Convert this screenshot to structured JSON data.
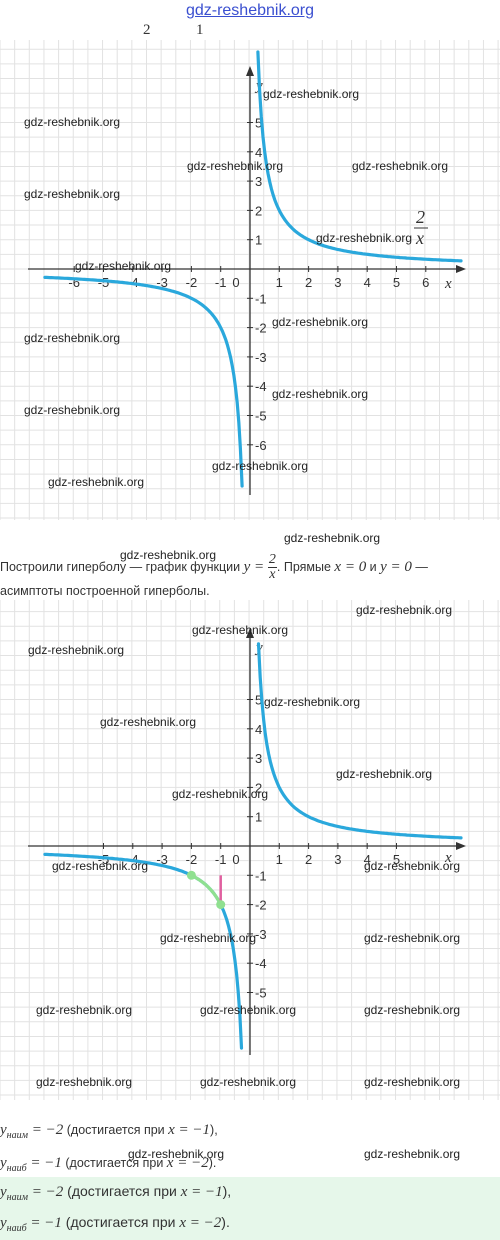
{
  "site": {
    "title": "gdz-reshebnik.org"
  },
  "top_numbers": [
    "2",
    "1"
  ],
  "watermark": "gdz-reshebnik.org",
  "graph1": {
    "x_ticks": [
      "-6",
      "-5",
      "-4",
      "-3",
      "-2",
      "-1",
      "0",
      "1",
      "2",
      "3",
      "4",
      "5",
      "6"
    ],
    "y_ticks": [
      "5",
      "4",
      "3",
      "2",
      "1",
      "-1",
      "-2",
      "-3",
      "-4",
      "-5",
      "-6"
    ],
    "x_label": "x",
    "y_label": "y",
    "fn_num": "2",
    "fn_den": "x"
  },
  "paragraph": {
    "part1": "Построили гиперболу — график функции ",
    "func_y": "y = ",
    "func_num": "2",
    "func_den": "x",
    "part2": ". Прямые ",
    "eq1": "x = 0",
    "and_word": " и ",
    "eq2": "y = 0",
    "part3": " —",
    "line2": "асимптоты построенной гиперболы."
  },
  "graph2": {
    "x_ticks": [
      "-5",
      "-4",
      "-3",
      "-2",
      "-1",
      "0",
      "1",
      "2",
      "3",
      "4",
      "5"
    ],
    "y_ticks": [
      "5",
      "4",
      "3",
      "2",
      "1",
      "-1",
      "-2",
      "-3",
      "-4",
      "-5"
    ],
    "x_label": "x",
    "y_label": "y"
  },
  "answers": [
    {
      "var": "y",
      "sub": "наим",
      "eq": " = −2",
      "text": " (достигается при ",
      "cond": "x = −1",
      "end": "),"
    },
    {
      "var": "y",
      "sub": "наиб",
      "eq": " = −1",
      "text": " (достигается при ",
      "cond": "x = −2",
      "end": ")."
    },
    {
      "var": "y",
      "sub": "наим",
      "eq": " = −2",
      "text": " (достигается при ",
      "cond": "x = −1",
      "end": "),"
    },
    {
      "var": "y",
      "sub": "наиб",
      "eq": " = −1",
      "text": " (достигается при ",
      "cond": "x = −2",
      "end": ")."
    }
  ],
  "colors": {
    "curve": "#2aa8dc",
    "highlight": "#90e090",
    "segment": "#e060a0",
    "grid": "#e2e2e2",
    "answer_bg": "#e6f7ea"
  }
}
